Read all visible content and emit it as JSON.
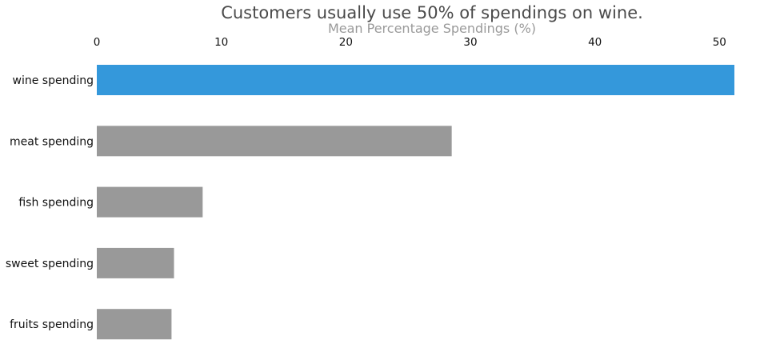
{
  "chart_data": {
    "type": "bar",
    "orientation": "horizontal",
    "title": "Customers usually use 50% of spendings on wine.",
    "xlabel": "Mean Percentage Spendings (%)",
    "xlabel_position": "top",
    "ylabel": "",
    "categories": [
      "wine spending",
      "meat spending",
      "fish spending",
      "sweet spending",
      "fruits spending"
    ],
    "values": [
      51.2,
      28.5,
      8.5,
      6.2,
      6.0
    ],
    "xlim": [
      0,
      51.2
    ],
    "xticks": [
      0,
      10,
      20,
      30,
      40,
      50
    ],
    "grid": false,
    "legend": "none",
    "colors": {
      "highlight": "#3498db",
      "default": "#999999",
      "title": "#4a4a4a",
      "axis_label": "#9a9a9a"
    },
    "highlight_category": "wine spending"
  }
}
